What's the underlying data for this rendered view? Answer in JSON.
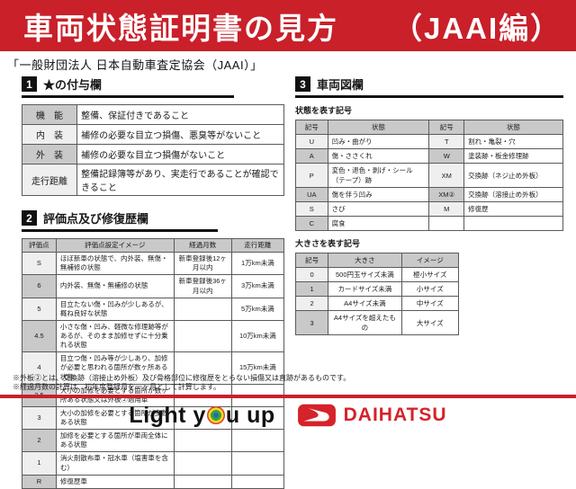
{
  "header": {
    "title": "車両状態証明書の見方",
    "edition": "（JAAI編）"
  },
  "subtitle": "「一般財団法人 日本自動車査定協会（JAAI）」",
  "section1": {
    "number": "1",
    "title": "★の付与欄",
    "table": {
      "rows": [
        [
          "機　能",
          "整備、保証付きであること"
        ],
        [
          "内　装",
          "補修の必要な目立つ損傷、悪臭等がないこと"
        ],
        [
          "外　装",
          "補修の必要な目立つ損傷がないこと"
        ],
        [
          "走行距離",
          "整備記録簿等があり、実走行であることが確認できること"
        ]
      ]
    }
  },
  "section2": {
    "number": "2",
    "title": "評価点及び修復歴欄",
    "table": {
      "headers": [
        "評価点",
        "評価点設定イメージ",
        "経過月数",
        "走行距離"
      ],
      "rows": [
        [
          "S",
          "ほぼ新車の状態で、内外装、無傷・無補修の状態",
          "新車登録後12ヶ月以内",
          "1万km未満"
        ],
        [
          "6",
          "内外装、無傷・無補修の状態",
          "新車登録後36ヶ月以内",
          "3万km未満"
        ],
        [
          "5",
          "目立たない傷・凹みが少しあるが、概ね良好な状態",
          "",
          "5万km未満"
        ],
        [
          "4.5",
          "小さな傷・凹み、軽微な修理跡等があるが、そのまま加修せずに十分乗れる状態",
          "",
          "10万km未満"
        ],
        [
          "4",
          "目立つ傷・凹み等が少しあり、加修が必要と思われる箇所が数ヶ所ある状態",
          "",
          "15万km未満"
        ],
        [
          "3.5",
          "大小の加修を必要とする箇所が数ヶ所ある状態又は外板②適用車",
          "",
          ""
        ],
        [
          "3",
          "大小の加修を必要とする箇所が多数ある状態",
          "",
          ""
        ],
        [
          "2",
          "加修を必要とする箇所が車両全体にある状態",
          "",
          ""
        ],
        [
          "1",
          "消火剤散布車・冠水車（塩害車を含む）",
          "",
          ""
        ],
        [
          "R",
          "修復歴車",
          "",
          ""
        ]
      ]
    }
  },
  "section3": {
    "number": "3",
    "title": "車両図欄",
    "condition_label": "状態を表す記号",
    "condition_table": {
      "headers": [
        "記号",
        "状態",
        "記号",
        "状態"
      ],
      "rows": [
        [
          "U",
          "凹み・曲がり",
          "T",
          "割れ・亀裂・穴"
        ],
        [
          "A",
          "傷・ささくれ",
          "W",
          "塗装跡・板金修理跡"
        ],
        [
          "P",
          "変色・退色・剥げ・シール（テープ）跡",
          "XM",
          "交換跡（ネジ止め外板）"
        ],
        [
          "UA",
          "傷を伴う凹み",
          "XM②",
          "交換跡（溶接止め外板）"
        ],
        [
          "S",
          "さび",
          "M",
          "修復歴"
        ],
        [
          "C",
          "腐食",
          "",
          ""
        ]
      ]
    },
    "size_label": "大きさを表す記号",
    "size_table": {
      "headers": [
        "記号",
        "大きさ",
        "イメージ"
      ],
      "rows": [
        [
          "0",
          "500円玉サイズ未満",
          "極小サイズ"
        ],
        [
          "1",
          "カードサイズ未満",
          "小サイズ"
        ],
        [
          "2",
          "A4サイズ未満",
          "中サイズ"
        ],
        [
          "3",
          "A4サイズを超えたもの",
          "大サイズ"
        ]
      ]
    }
  },
  "footnotes": [
    "※外板②とは、交換跡（溶接止め外板）及び骨格部位に修復歴をとらない損傷又は直跡があるものです。",
    "※経過月数の計算は、初年度登録月を一ヶ月として計算します。"
  ],
  "footer": {
    "slogan_prefix": "Light y",
    "slogan_suffix": "u up",
    "brand": "DAIHATSU"
  },
  "colors": {
    "accent_red": "#c9202a",
    "badge_black": "#111111",
    "table_header_gray": "#c9c9c9",
    "brand_red": "#d6222a"
  }
}
